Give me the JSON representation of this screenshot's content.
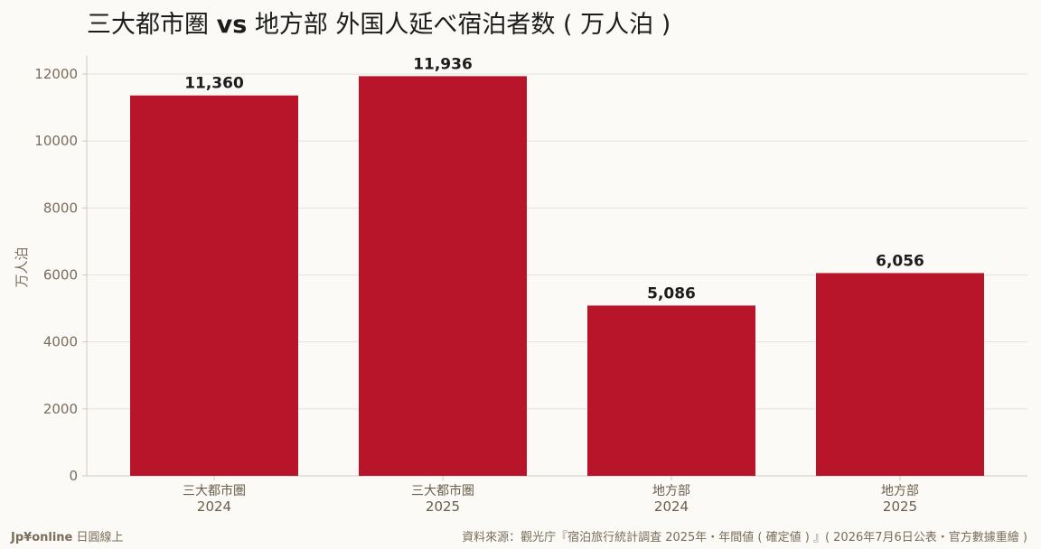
{
  "title": {
    "part1": "三大都市圏 ",
    "vs": "vs",
    "part2": " 地方部 外国人延べ宿泊者数 ( 万人泊 )"
  },
  "footer": {
    "brand_bold": "Jp¥online",
    "brand_rest": " 日圓線上",
    "source": "資料來源：觀光庁『宿泊旅行統計調査 2025年・年間値 ( 確定値 ) 』( 2026年7月6日公表・官方數據重繪 )"
  },
  "colors": {
    "bar": "#b8152b",
    "background": "#fbfaf6"
  },
  "chart_data": {
    "type": "bar",
    "categories": [
      "三大都市圏",
      "三大都市圏",
      "地方部",
      "地方部"
    ],
    "years": [
      "2024",
      "2025",
      "2024",
      "2025"
    ],
    "values": [
      11360,
      11936,
      5086,
      6056
    ],
    "value_labels": [
      "11,360",
      "11,936",
      "5,086",
      "6,056"
    ],
    "ylabel": "万人泊",
    "yticks": [
      0,
      2000,
      4000,
      6000,
      8000,
      10000,
      12000
    ],
    "ylim": [
      0,
      12500
    ],
    "grid": true
  }
}
